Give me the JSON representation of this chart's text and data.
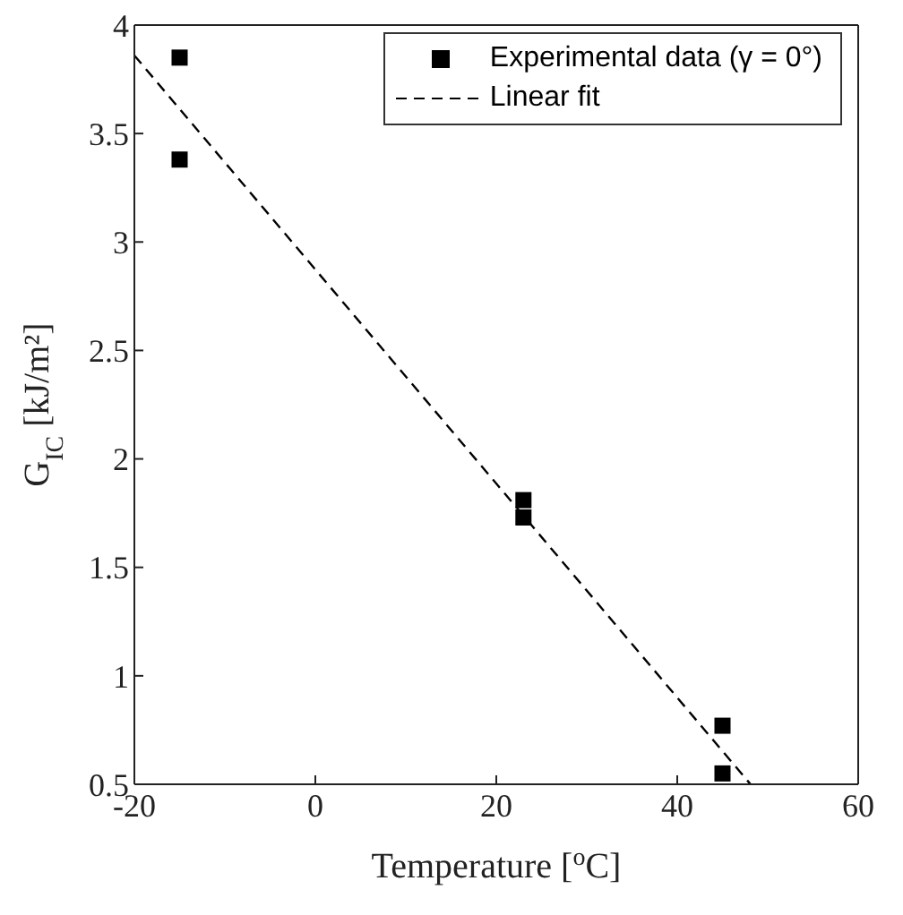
{
  "chart_data": {
    "type": "scatter",
    "xlabel": "Temperature [$^{o}$C]",
    "ylabel": "G$_{IC}$ [kJ/m²]",
    "xlim": [
      -20,
      60
    ],
    "xticks": [
      -20,
      0,
      20,
      40,
      60
    ],
    "ylim": [
      0.5,
      4
    ],
    "yticks": [
      0.5,
      1,
      1.5,
      2,
      2.5,
      3,
      3.5,
      4
    ],
    "legend": "top right",
    "series": [
      {
        "name": "Experimental data (γ = 0°)",
        "marker": "square",
        "color": "#000000",
        "x": [
          -15,
          -15,
          23,
          23,
          45,
          45
        ],
        "values": [
          3.85,
          3.38,
          1.81,
          1.73,
          0.77,
          0.55
        ]
      },
      {
        "name": "Linear fit",
        "type": "line",
        "color": "#000000",
        "line_style": "dashed",
        "x": [
          -20,
          48.1
        ],
        "values": [
          3.86,
          0.5
        ]
      }
    ]
  }
}
